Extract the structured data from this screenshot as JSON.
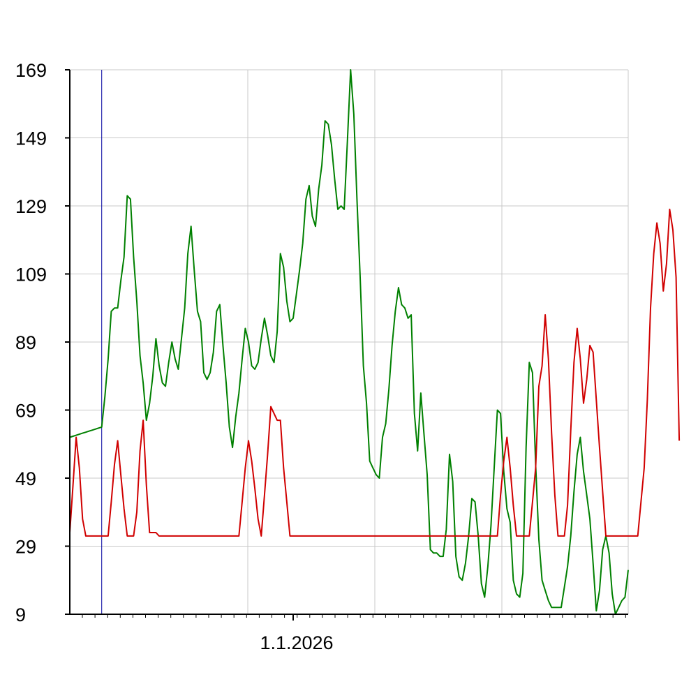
{
  "chart_data": {
    "type": "line",
    "title": "",
    "xlabel": "",
    "ylabel": "",
    "ylim": [
      9,
      169
    ],
    "yticks": [
      9,
      29,
      49,
      69,
      89,
      109,
      129,
      149,
      169
    ],
    "y_tick_labels": [
      "9",
      "29",
      "49",
      "69",
      "89",
      "109",
      "129",
      "149",
      "169"
    ],
    "x_tick_labels": [
      "1.1.2026"
    ],
    "x_label_index": 70,
    "marker_index": 10,
    "grid": true,
    "colors": {
      "grid": "#c8c8c8",
      "axis": "#000000",
      "marker": "#0000a0"
    },
    "series": [
      {
        "name": "green",
        "color": "#008000",
        "values": [
          61,
          61.3,
          61.6,
          61.9,
          62.2,
          62.5,
          62.8,
          63.1,
          63.4,
          63.7,
          64,
          73,
          84,
          98,
          99,
          99,
          107,
          114,
          132,
          131,
          114,
          101,
          85,
          77,
          66,
          71,
          79,
          90,
          82,
          77,
          76,
          83,
          89,
          84,
          81,
          90,
          99,
          115,
          123,
          110,
          98,
          95,
          80,
          78,
          80,
          86,
          98,
          100,
          88,
          77,
          64,
          58,
          67,
          74,
          84,
          93,
          89,
          82,
          81,
          83,
          90,
          96,
          91,
          85,
          83,
          92,
          115,
          111,
          101,
          95,
          96,
          103,
          110,
          118,
          131,
          135,
          126,
          123,
          134,
          141,
          154,
          153,
          147,
          137,
          128,
          129,
          128,
          148,
          169,
          156,
          131,
          108,
          82,
          71,
          54,
          52,
          50,
          49,
          61,
          65,
          75,
          88,
          98,
          105,
          100,
          99,
          96,
          97,
          68,
          57,
          74,
          62,
          50,
          28,
          27,
          27,
          26,
          26,
          34,
          56,
          48,
          26,
          20,
          19,
          24,
          32,
          43,
          42,
          32,
          18,
          14,
          23,
          35,
          52,
          69,
          68,
          51,
          40,
          36,
          19,
          15,
          14,
          21,
          58,
          83,
          80,
          53,
          31,
          19,
          16,
          13,
          11,
          11,
          11,
          11,
          17,
          23,
          32,
          45,
          56,
          61,
          51,
          44,
          37,
          24,
          10,
          16,
          28,
          32,
          27,
          15,
          9,
          11,
          13,
          14,
          22
        ]
      },
      {
        "name": "red",
        "color": "#d00000",
        "values": [
          33,
          47,
          61,
          52,
          37,
          32,
          32,
          32,
          32,
          32,
          32,
          32,
          32,
          42,
          53,
          60,
          50,
          40,
          32,
          32,
          32,
          39,
          57,
          66,
          47,
          33,
          33,
          33,
          32,
          32,
          32,
          32,
          32,
          32,
          32,
          32,
          32,
          32,
          32,
          32,
          32,
          32,
          32,
          32,
          32,
          32,
          32,
          32,
          32,
          32,
          32,
          32,
          32,
          32,
          42,
          52,
          60,
          54,
          46,
          37,
          32,
          44,
          56,
          70,
          68,
          66,
          66,
          52,
          42,
          32,
          32,
          32,
          32,
          32,
          32,
          32,
          32,
          32,
          32,
          32,
          32,
          32,
          32,
          32,
          32,
          32,
          32,
          32,
          32,
          32,
          32,
          32,
          32,
          32,
          32,
          32,
          32,
          32,
          32,
          32,
          32,
          32,
          32,
          32,
          32,
          32,
          32,
          32,
          32,
          32,
          32,
          32,
          32,
          32,
          32,
          32,
          32,
          32,
          32,
          32,
          32,
          32,
          32,
          32,
          32,
          32,
          32,
          32,
          32,
          32,
          32,
          32,
          32,
          32,
          32,
          44,
          54,
          61,
          52,
          41,
          32,
          32,
          32,
          32,
          32,
          42,
          52,
          76,
          82,
          97,
          84,
          62,
          44,
          32,
          32,
          32,
          41,
          63,
          83,
          93,
          84,
          71,
          78,
          88,
          86,
          72,
          58,
          45,
          32,
          32,
          32,
          32,
          32,
          32,
          32,
          32,
          32,
          32,
          32,
          42,
          52,
          72,
          99,
          115,
          124,
          118,
          104,
          112,
          128,
          122,
          108,
          60
        ]
      }
    ]
  }
}
